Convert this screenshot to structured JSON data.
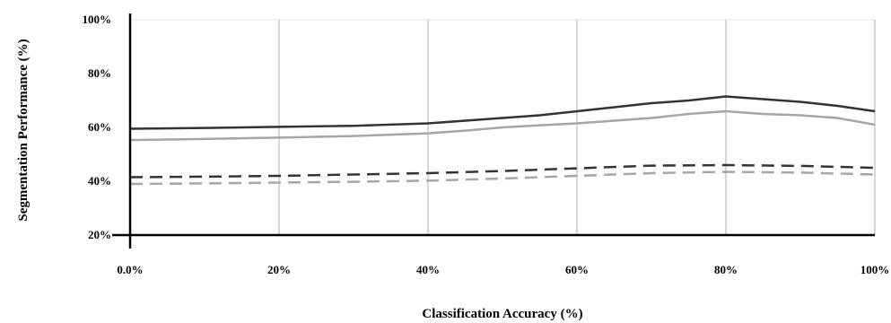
{
  "chart_data": {
    "type": "line",
    "title": "",
    "xlabel": "Classification Accuracy (%)",
    "ylabel": "Segmentation Performance (%)",
    "xlim": [
      0,
      100
    ],
    "ylim": [
      20,
      100
    ],
    "x_ticks": [
      "0.0%",
      "20%",
      "40%",
      "60%",
      "80%",
      "100%"
    ],
    "y_ticks": [
      "20%",
      "40%",
      "60%",
      "80%",
      "100%"
    ],
    "grid": "vertical",
    "legend": "none",
    "series": [
      {
        "color": "#333333",
        "dash": "solid",
        "x": [
          0,
          10,
          20,
          30,
          40,
          45,
          50,
          55,
          60,
          65,
          70,
          75,
          80,
          85,
          90,
          95,
          100
        ],
        "y": [
          59.5,
          59.8,
          60.2,
          60.6,
          61.5,
          62.5,
          63.5,
          64.5,
          66.0,
          67.5,
          69.0,
          70.0,
          71.5,
          70.5,
          69.5,
          68.0,
          66.0
        ]
      },
      {
        "color": "#a6a6a6",
        "dash": "solid",
        "x": [
          0,
          10,
          20,
          30,
          40,
          45,
          50,
          55,
          60,
          65,
          70,
          75,
          80,
          85,
          90,
          95,
          100
        ],
        "y": [
          55.3,
          55.7,
          56.2,
          56.8,
          57.8,
          58.8,
          60.0,
          60.8,
          61.5,
          62.5,
          63.5,
          65.0,
          66.0,
          65.0,
          64.5,
          63.5,
          61.0
        ]
      },
      {
        "color": "#333333",
        "dash": "dashed",
        "x": [
          0,
          10,
          20,
          30,
          40,
          50,
          60,
          70,
          80,
          90,
          100
        ],
        "y": [
          41.5,
          41.7,
          42.0,
          42.5,
          43.0,
          43.8,
          44.8,
          45.8,
          46.0,
          45.7,
          45.0
        ]
      },
      {
        "color": "#a6a6a6",
        "dash": "dashed",
        "x": [
          0,
          10,
          20,
          30,
          40,
          50,
          60,
          70,
          80,
          90,
          100
        ],
        "y": [
          39.0,
          39.2,
          39.5,
          39.8,
          40.2,
          41.0,
          42.0,
          43.0,
          43.5,
          43.2,
          42.5
        ]
      }
    ]
  }
}
